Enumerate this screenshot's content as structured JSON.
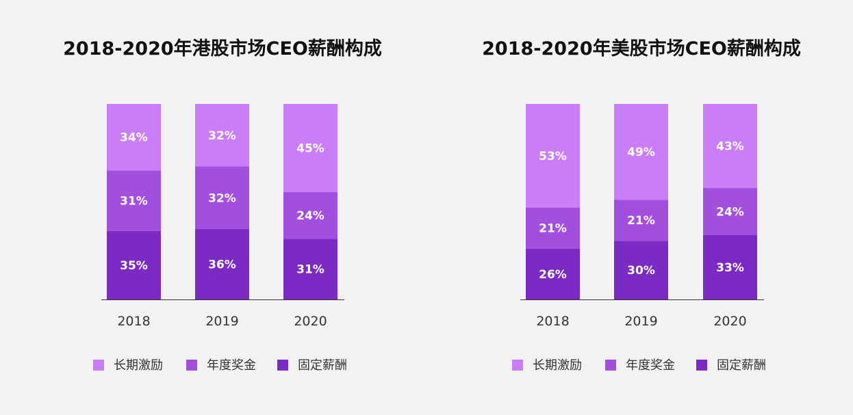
{
  "colors": {
    "long_term": "#c97ef7",
    "bonus": "#a24fe0",
    "fixed": "#7b2bc4",
    "axis": "#333333"
  },
  "chart_data": [
    {
      "type": "bar",
      "stacked": true,
      "title": "2018-2020年港股市场CEO薪酬构成",
      "categories": [
        "2018",
        "2019",
        "2020"
      ],
      "series": [
        {
          "name": "固定薪酬",
          "key": "fixed",
          "values": [
            35,
            36,
            31
          ],
          "labels": [
            "35%",
            "36%",
            "31%"
          ]
        },
        {
          "name": "年度奖金",
          "key": "bonus",
          "values": [
            31,
            32,
            24
          ],
          "labels": [
            "31%",
            "32%",
            "24%"
          ]
        },
        {
          "name": "长期激励",
          "key": "long_term",
          "values": [
            34,
            32,
            45
          ],
          "labels": [
            "34%",
            "32%",
            "45%"
          ]
        }
      ],
      "legend": [
        "长期激励",
        "年度奖金",
        "固定薪酬"
      ],
      "ylim": [
        0,
        100
      ],
      "legend_position": "bottom"
    },
    {
      "type": "bar",
      "stacked": true,
      "title": "2018-2020年美股市场CEO薪酬构成",
      "categories": [
        "2018",
        "2019",
        "2020"
      ],
      "series": [
        {
          "name": "固定薪酬",
          "key": "fixed",
          "values": [
            26,
            30,
            33
          ],
          "labels": [
            "26%",
            "30%",
            "33%"
          ]
        },
        {
          "name": "年度奖金",
          "key": "bonus",
          "values": [
            21,
            21,
            24
          ],
          "labels": [
            "21%",
            "21%",
            "24%"
          ]
        },
        {
          "name": "长期激励",
          "key": "long_term",
          "values": [
            53,
            49,
            43
          ],
          "labels": [
            "53%",
            "49%",
            "43%"
          ]
        }
      ],
      "legend": [
        "长期激励",
        "年度奖金",
        "固定薪酬"
      ],
      "ylim": [
        0,
        100
      ],
      "legend_position": "bottom"
    }
  ]
}
